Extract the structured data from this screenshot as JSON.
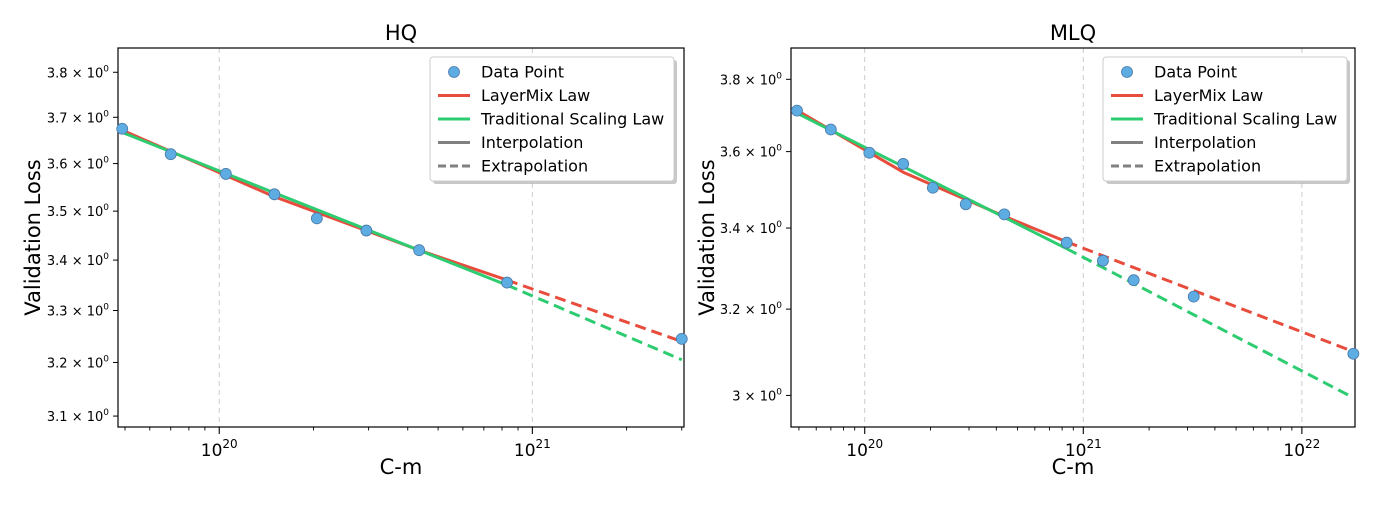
{
  "chart_data": [
    {
      "type": "line",
      "title": "HQ",
      "xlabel": "C-m",
      "ylabel": "Validation Loss",
      "x_scale": "log",
      "y_scale": "log",
      "xlim": [
        4.75e+19,
        3.05e+21
      ],
      "ylim": [
        3.08,
        3.855
      ],
      "grid": "x-major",
      "legend_position": "top-right",
      "x_ticks": [
        {
          "value": 1e+20,
          "base": "10",
          "exp": "20"
        },
        {
          "value": 1e+21,
          "base": "10",
          "exp": "21"
        }
      ],
      "y_ticks": [
        {
          "value": 3.1,
          "label": "3.1 × 10",
          "exp": "0"
        },
        {
          "value": 3.2,
          "label": "3.2 × 10",
          "exp": "0"
        },
        {
          "value": 3.3,
          "label": "3.3 × 10",
          "exp": "0"
        },
        {
          "value": 3.4,
          "label": "3.4 × 10",
          "exp": "0"
        },
        {
          "value": 3.5,
          "label": "3.5 × 10",
          "exp": "0"
        },
        {
          "value": 3.6,
          "label": "3.6 × 10",
          "exp": "0"
        },
        {
          "value": 3.7,
          "label": "3.7 × 10",
          "exp": "0"
        },
        {
          "value": 3.8,
          "label": "3.8 × 10",
          "exp": "0"
        }
      ],
      "series": [
        {
          "name": "Data Point",
          "kind": "scatter",
          "color": "#5DADE2",
          "points": [
            [
              4.9e+19,
              3.675
            ],
            [
              7e+19,
              3.62
            ],
            [
              1.05e+20,
              3.578
            ],
            [
              1.5e+20,
              3.535
            ],
            [
              2.05e+20,
              3.485
            ],
            [
              2.95e+20,
              3.46
            ],
            [
              4.35e+20,
              3.42
            ],
            [
              8.3e+20,
              3.355
            ],
            [
              3e+21,
              3.245
            ]
          ]
        },
        {
          "name": "LayerMix Law",
          "kind": "line",
          "color": "#E74C3C",
          "interp": [
            [
              4.9e+19,
              3.672
            ],
            [
              1.5e+20,
              3.53
            ],
            [
              4.35e+20,
              3.42
            ],
            [
              8.3e+20,
              3.36
            ]
          ],
          "extrap": [
            [
              8.3e+20,
              3.36
            ],
            [
              3e+21,
              3.24
            ]
          ]
        },
        {
          "name": "Traditional Scaling Law",
          "kind": "line",
          "color": "#2ECC71",
          "interp": [
            [
              4.9e+19,
              3.667
            ],
            [
              8.3e+20,
              3.35
            ]
          ],
          "extrap": [
            [
              8.3e+20,
              3.35
            ],
            [
              3e+21,
              3.205
            ]
          ]
        },
        {
          "name": "Interpolation",
          "kind": "legend-line",
          "color": "#808080",
          "dash": "solid"
        },
        {
          "name": "Extrapolation",
          "kind": "legend-line",
          "color": "#808080",
          "dash": "dashed"
        }
      ]
    },
    {
      "type": "line",
      "title": "MLQ",
      "xlabel": "C-m",
      "ylabel": "Validation Loss",
      "x_scale": "log",
      "y_scale": "log",
      "xlim": [
        4.6e+19,
        1.75e+22
      ],
      "ylim": [
        2.93,
        3.89
      ],
      "grid": "x-major",
      "legend_position": "top-right",
      "x_ticks": [
        {
          "value": 1e+20,
          "base": "10",
          "exp": "20"
        },
        {
          "value": 1e+21,
          "base": "10",
          "exp": "21"
        },
        {
          "value": 1e+22,
          "base": "10",
          "exp": "22"
        }
      ],
      "y_ticks": [
        {
          "value": 3.0,
          "label": "3 × 10",
          "exp": "0"
        },
        {
          "value": 3.2,
          "label": "3.2 × 10",
          "exp": "0"
        },
        {
          "value": 3.4,
          "label": "3.4 × 10",
          "exp": "0"
        },
        {
          "value": 3.6,
          "label": "3.6 × 10",
          "exp": "0"
        },
        {
          "value": 3.8,
          "label": "3.8 × 10",
          "exp": "0"
        }
      ],
      "series": [
        {
          "name": "Data Point",
          "kind": "scatter",
          "color": "#5DADE2",
          "points": [
            [
              4.9e+19,
              3.712
            ],
            [
              7e+19,
              3.66
            ],
            [
              1.05e+20,
              3.597
            ],
            [
              1.5e+20,
              3.567
            ],
            [
              2.05e+20,
              3.504
            ],
            [
              2.9e+20,
              3.461
            ],
            [
              4.35e+20,
              3.435
            ],
            [
              8.4e+20,
              3.363
            ],
            [
              1.23e+21,
              3.318
            ],
            [
              1.7e+21,
              3.27
            ],
            [
              3.2e+21,
              3.23
            ],
            [
              1.72e+22,
              3.095
            ]
          ]
        },
        {
          "name": "LayerMix Law",
          "kind": "line",
          "color": "#E74C3C",
          "interp": [
            [
              4.9e+19,
              3.713
            ],
            [
              1.5e+20,
              3.545
            ],
            [
              4.35e+20,
              3.43
            ],
            [
              8.4e+20,
              3.365
            ]
          ],
          "extrap": [
            [
              8.4e+20,
              3.365
            ],
            [
              1.72e+22,
              3.1
            ]
          ]
        },
        {
          "name": "Traditional Scaling Law",
          "kind": "line",
          "color": "#2ECC71",
          "interp": [
            [
              4.9e+19,
              3.705
            ],
            [
              8.4e+20,
              3.348
            ]
          ],
          "extrap": [
            [
              8.4e+20,
              3.348
            ],
            [
              1.72e+22,
              2.995
            ]
          ]
        },
        {
          "name": "Interpolation",
          "kind": "legend-line",
          "color": "#808080",
          "dash": "solid"
        },
        {
          "name": "Extrapolation",
          "kind": "legend-line",
          "color": "#808080",
          "dash": "dashed"
        }
      ]
    }
  ]
}
